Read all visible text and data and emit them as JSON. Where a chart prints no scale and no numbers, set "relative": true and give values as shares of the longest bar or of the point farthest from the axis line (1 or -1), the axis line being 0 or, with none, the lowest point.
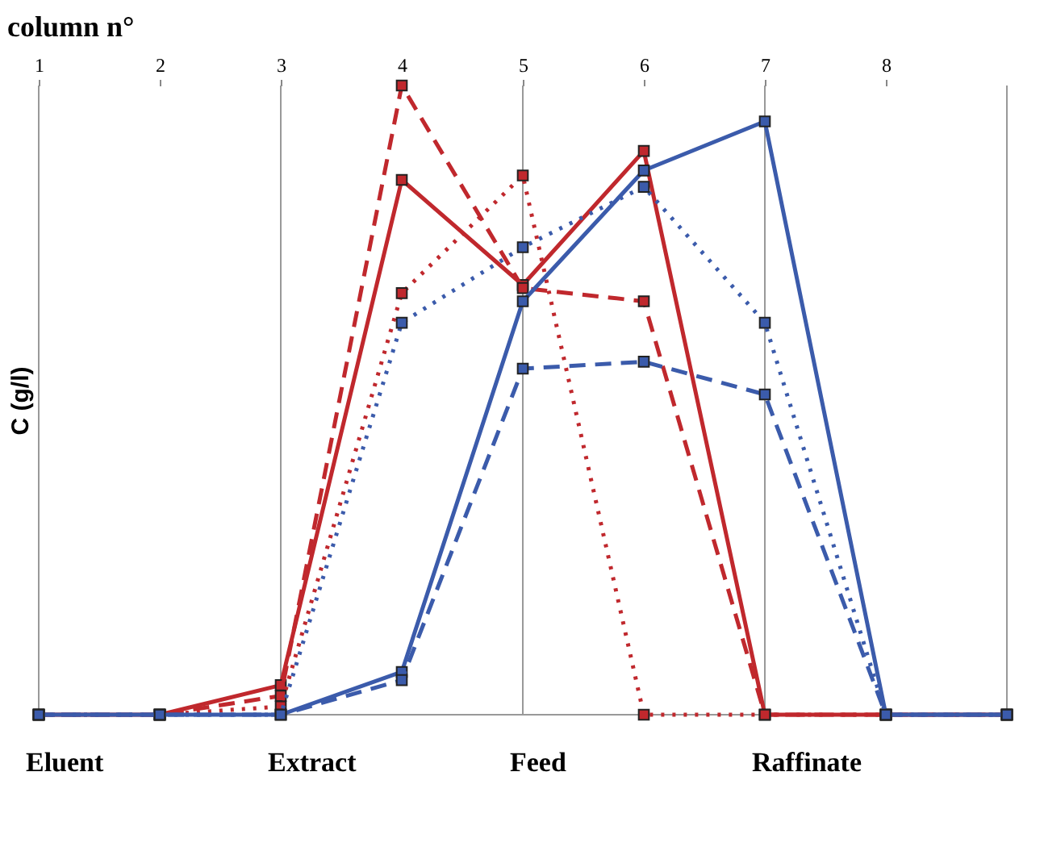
{
  "chart_data": {
    "type": "line",
    "relative": true,
    "xlabel": "column n°",
    "ylabel": "C (g/l)",
    "x": [
      1,
      2,
      3,
      4,
      5,
      6,
      7,
      8,
      9
    ],
    "xlim": [
      1,
      9
    ],
    "xticks": [
      1,
      2,
      3,
      4,
      5,
      6,
      7,
      8
    ],
    "marker": "square",
    "grid": false,
    "series": [
      {
        "color": "#c0282d",
        "line_style": "solid",
        "values": [
          0,
          0,
          0.047,
          0.85,
          0.683,
          0.896,
          0,
          0,
          0
        ]
      },
      {
        "color": "#c0282d",
        "line_style": "dashed",
        "values": [
          0,
          0,
          0.03,
          1.0,
          0.678,
          0.657,
          0,
          0,
          0
        ]
      },
      {
        "color": "#c0282d",
        "line_style": "dotted",
        "values": [
          0,
          0,
          0.013,
          0.67,
          0.857,
          0,
          0,
          0,
          0
        ]
      },
      {
        "color": "#3b5bab",
        "line_style": "solid",
        "values": [
          0,
          0,
          0,
          0.068,
          0.657,
          0.865,
          0.943,
          0,
          0
        ]
      },
      {
        "color": "#3b5bab",
        "line_style": "dashed",
        "values": [
          0,
          0,
          0,
          0.055,
          0.55,
          0.561,
          0.509,
          0,
          0
        ]
      },
      {
        "color": "#3b5bab",
        "line_style": "dotted",
        "values": [
          0,
          0,
          0,
          0.623,
          0.743,
          0.839,
          0.623,
          0,
          0
        ]
      }
    ],
    "ref_lines": [
      {
        "axis": "x",
        "value": 3,
        "color": "#999999"
      },
      {
        "axis": "x",
        "value": 5,
        "color": "#999999"
      },
      {
        "axis": "x",
        "value": 7,
        "color": "#999999"
      }
    ],
    "annotations": [
      "Eluent",
      "Extract",
      "Feed",
      "Raffinate"
    ]
  }
}
